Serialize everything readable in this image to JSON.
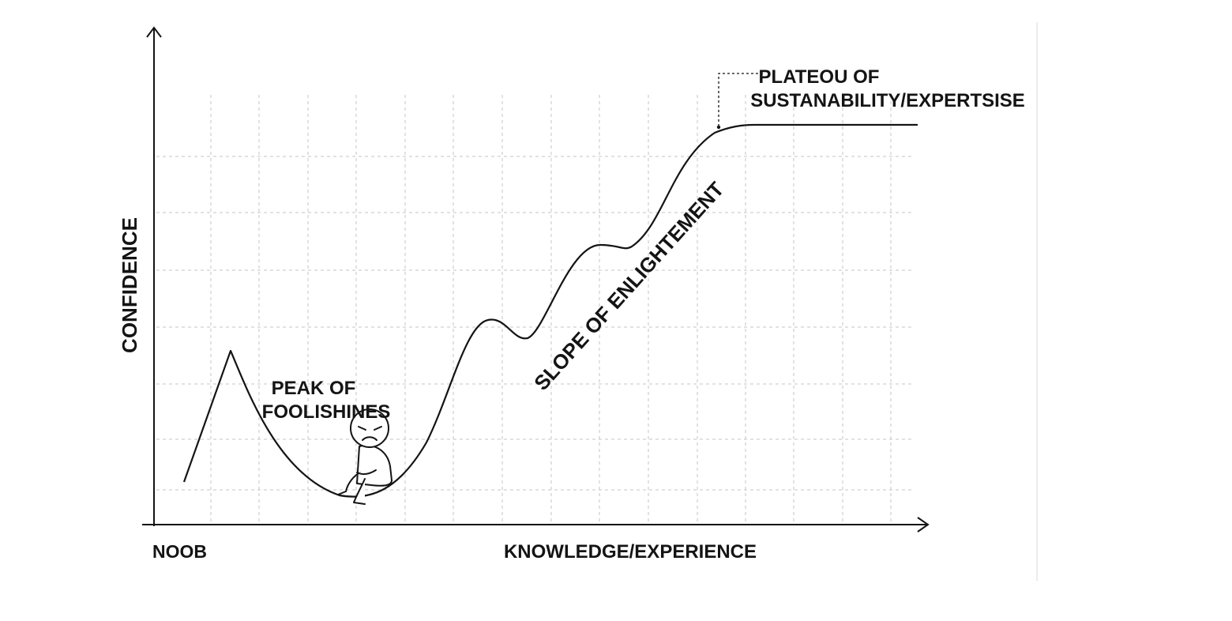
{
  "diagram": {
    "y_axis_label": "CONFIDENCE",
    "x_axis_label": "KNOWLEDGE/EXPERIENCE",
    "origin_label": "NOOB",
    "annotations": {
      "peak": [
        "PEAK OF",
        "FOOLISHINES"
      ],
      "slope": "SLOPE OF ENLIGHTEMENT",
      "plateau": [
        "PLATEOU OF",
        "SUSTANABILITY/EXPERTSISE"
      ]
    },
    "figure": "sad-stick-figure-icon",
    "colors": {
      "ink": "#141414",
      "grid": "#c4c4c4",
      "background": "#ffffff"
    }
  }
}
